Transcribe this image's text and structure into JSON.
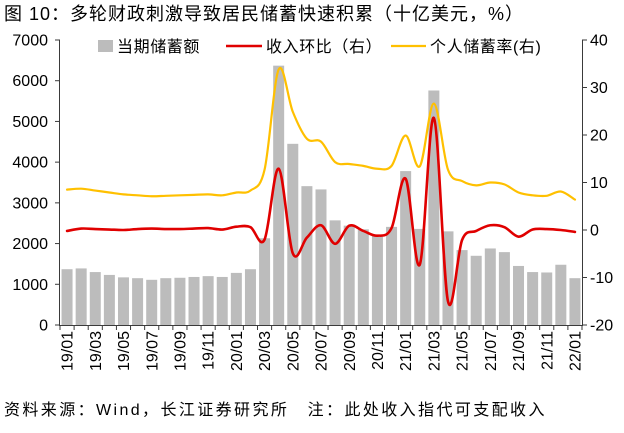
{
  "source_note": "资料来源：Wind，长江证券研究所　注：此处收入指代可支配收入",
  "chart_data": {
    "type": "bar",
    "title": "图 10：多轮财政刺激导致居民储蓄快速积累（十亿美元，%）",
    "x_tick_labels": [
      "19/01",
      "19/03",
      "19/05",
      "19/07",
      "19/09",
      "19/11",
      "20/01",
      "20/03",
      "20/05",
      "20/07",
      "20/09",
      "20/11",
      "21/01",
      "21/03",
      "21/05",
      "21/07",
      "21/09",
      "21/11",
      "22/01"
    ],
    "y_left": {
      "lim": [
        0,
        7000
      ],
      "ticks": [
        0,
        1000,
        2000,
        3000,
        4000,
        5000,
        6000,
        7000
      ]
    },
    "y_right": {
      "lim": [
        -20,
        40
      ],
      "ticks": [
        -20,
        -10,
        0,
        10,
        20,
        30,
        40
      ]
    },
    "grid": false,
    "legend_position": "top",
    "series": [
      {
        "name": "当期储蓄额",
        "type": "bar",
        "axis": "left",
        "color": "#bcbcbc",
        "values": [
          1370,
          1390,
          1300,
          1230,
          1170,
          1150,
          1110,
          1150,
          1160,
          1180,
          1200,
          1180,
          1280,
          1370,
          2130,
          6370,
          4450,
          3410,
          3330,
          2570,
          2440,
          2350,
          2220,
          2410,
          3780,
          2360,
          5760,
          2300,
          1840,
          1700,
          1880,
          1790,
          1450,
          1300,
          1290,
          1480,
          1150
        ]
      },
      {
        "name": "收入环比（右）",
        "type": "line",
        "axis": "right",
        "color": "#e00000",
        "smooth": true,
        "values": [
          -0.2,
          0.3,
          0.2,
          0.1,
          0.0,
          0.2,
          0.3,
          0.2,
          0.2,
          0.3,
          0.4,
          0.1,
          0.7,
          0.6,
          -2.0,
          12.9,
          -4.9,
          -1.6,
          1.0,
          -2.9,
          0.9,
          -0.2,
          -1.2,
          0.4,
          10.8,
          -7.3,
          23.6,
          -15.0,
          -2.1,
          -0.2,
          1.0,
          0.6,
          -1.4,
          0.1,
          0.2,
          0.0,
          -0.4
        ]
      },
      {
        "name": "个人储蓄率(右)",
        "type": "line",
        "axis": "right",
        "color": "#ffc000",
        "smooth": true,
        "values": [
          8.5,
          8.7,
          8.3,
          7.9,
          7.5,
          7.3,
          7.1,
          7.2,
          7.3,
          7.4,
          7.5,
          7.3,
          7.9,
          8.3,
          12.7,
          33.8,
          24.9,
          19.2,
          18.6,
          14.3,
          13.9,
          13.5,
          12.9,
          13.5,
          19.9,
          13.4,
          26.6,
          12.7,
          10.3,
          9.4,
          10.0,
          9.6,
          7.9,
          7.3,
          7.2,
          8.1,
          6.4
        ]
      }
    ]
  }
}
